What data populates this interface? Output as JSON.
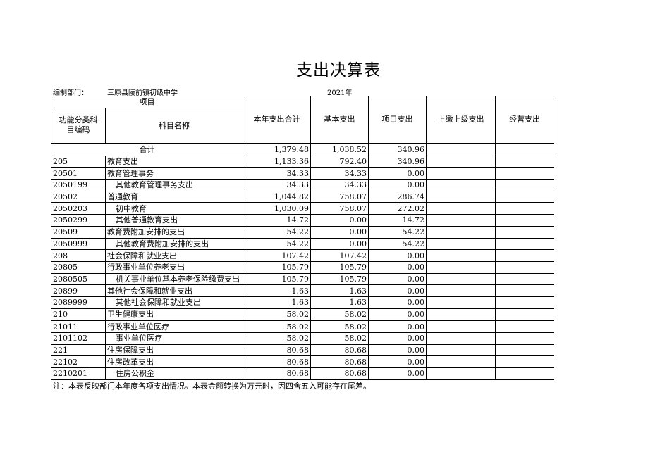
{
  "title": "支出决算表",
  "department_label": "编制部门：",
  "department": "三原县陵前镇初级中学",
  "year": "2021年",
  "headers": {
    "item": "项目",
    "code": "功能分类科目编码",
    "name": "科目名称",
    "total": "本年支出合计",
    "basic": "基本支出",
    "project": "项目支出",
    "upper": "上缴上级支出",
    "business": "经营支出"
  },
  "total_row": {
    "label": "合计",
    "total": "1,379.48",
    "basic": "1,038.52",
    "project": "340.96"
  },
  "rows": [
    {
      "code": "205",
      "name": "教育支出",
      "total": "1,133.36",
      "basic": "792.40",
      "project": "340.96",
      "indent": false
    },
    {
      "code": "20501",
      "name": "教育管理事务",
      "total": "34.33",
      "basic": "34.33",
      "project": "0.00",
      "indent": false
    },
    {
      "code": "2050199",
      "name": "其他教育管理事务支出",
      "total": "34.33",
      "basic": "34.33",
      "project": "0.00",
      "indent": true
    },
    {
      "code": "20502",
      "name": "普通教育",
      "total": "1,044.82",
      "basic": "758.07",
      "project": "286.74",
      "indent": false
    },
    {
      "code": "2050203",
      "name": "初中教育",
      "total": "1,030.09",
      "basic": "758.07",
      "project": "272.02",
      "indent": true
    },
    {
      "code": "2050299",
      "name": "其他普通教育支出",
      "total": "14.72",
      "basic": "0.00",
      "project": "14.72",
      "indent": true
    },
    {
      "code": "20509",
      "name": "教育费附加安排的支出",
      "total": "54.22",
      "basic": "0.00",
      "project": "54.22",
      "indent": false
    },
    {
      "code": "2050999",
      "name": "其他教育费附加安排的支出",
      "total": "54.22",
      "basic": "0.00",
      "project": "54.22",
      "indent": true
    },
    {
      "code": "208",
      "name": "社会保障和就业支出",
      "total": "107.42",
      "basic": "107.42",
      "project": "0.00",
      "indent": false
    },
    {
      "code": "20805",
      "name": "行政事业单位养老支出",
      "total": "105.79",
      "basic": "105.79",
      "project": "0.00",
      "indent": false
    },
    {
      "code": "2080505",
      "name": "机关事业单位基本养老保险缴费支出",
      "total": "105.79",
      "basic": "105.79",
      "project": "0.00",
      "indent": true
    },
    {
      "code": "20899",
      "name": "其他社会保障和就业支出",
      "total": "1.63",
      "basic": "1.63",
      "project": "0.00",
      "indent": false
    },
    {
      "code": "2089999",
      "name": "其他社会保障和就业支出",
      "total": "1.63",
      "basic": "1.63",
      "project": "0.00",
      "indent": true
    },
    {
      "code": "210",
      "name": "卫生健康支出",
      "total": "58.02",
      "basic": "58.02",
      "project": "0.00",
      "indent": false
    },
    {
      "code": "21011",
      "name": "行政事业单位医疗",
      "total": "58.02",
      "basic": "58.02",
      "project": "0.00",
      "indent": false
    },
    {
      "code": "2101102",
      "name": "事业单位医疗",
      "total": "58.02",
      "basic": "58.02",
      "project": "0.00",
      "indent": true
    },
    {
      "code": "221",
      "name": "住房保障支出",
      "total": "80.68",
      "basic": "80.68",
      "project": "0.00",
      "indent": false
    },
    {
      "code": "22102",
      "name": "住房改革支出",
      "total": "80.68",
      "basic": "80.68",
      "project": "0.00",
      "indent": false
    },
    {
      "code": "2210201",
      "name": "住房公积金",
      "total": "80.68",
      "basic": "80.68",
      "project": "0.00",
      "indent": true
    }
  ],
  "note": "注：本表反映部门本年度各项支出情况。本表金额转换为万元时，因四舍五入可能存在尾差。"
}
